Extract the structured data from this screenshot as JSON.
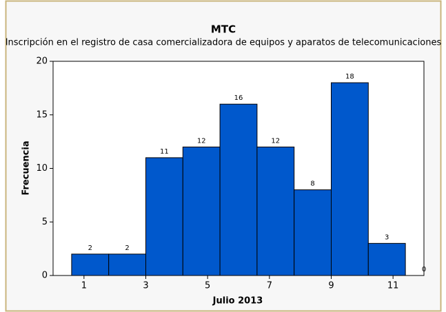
{
  "chart_data": {
    "type": "histogram",
    "title": "MTC",
    "subtitle": "Inscripción en el registro de casa comercializadora de equipos y aparatos de telecomunicaciones",
    "x_label": "Julio 2013",
    "y_label": "Frecuencia",
    "bins": [
      0.6,
      1.8,
      3.0,
      4.2,
      5.4,
      6.6,
      7.8,
      9.0,
      10.2,
      11.4,
      12.6
    ],
    "values": [
      2,
      2,
      11,
      12,
      16,
      12,
      8,
      18,
      3,
      0
    ],
    "color": "#0058cc",
    "xlim": [
      0,
      12
    ],
    "xticks": [
      1,
      3,
      5,
      7,
      9,
      11
    ],
    "ylim": [
      0,
      20
    ],
    "yticks": [
      0,
      5,
      10,
      15,
      20
    ],
    "grid": false
  }
}
